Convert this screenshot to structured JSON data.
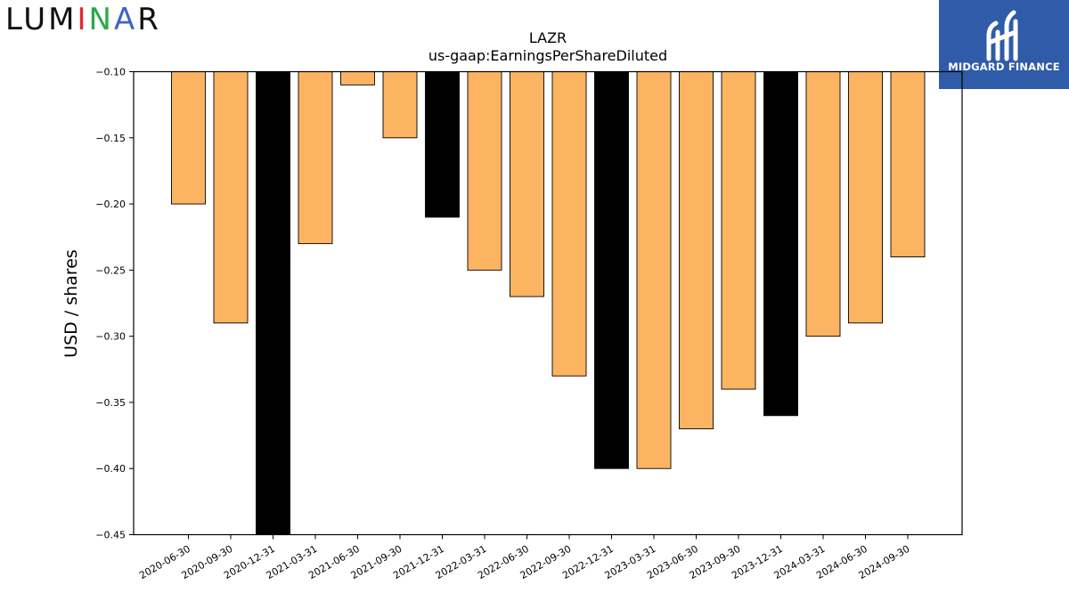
{
  "brand_left": {
    "parts": [
      "LUM",
      "I",
      "N",
      "A",
      "R"
    ],
    "colors": {
      "i_red": "#e3262f",
      "i_green": "#2aa84a",
      "i_blue": "#3d63c9"
    }
  },
  "brand_right": {
    "name": "MIDGARD FINANCE",
    "background": "#2f5ba8"
  },
  "chart_data": {
    "type": "bar",
    "title": "LAZR",
    "subtitle": "us-gaap:EarningsPerShareDiluted",
    "ylabel": "USD / shares",
    "xlabel": "",
    "ylim": [
      -0.45,
      -0.1
    ],
    "yticks": [
      "-0.10",
      "-0.15",
      "-0.20",
      "-0.25",
      "-0.30",
      "-0.35",
      "-0.40",
      "-0.45"
    ],
    "ytick_values": [
      -0.1,
      -0.15,
      -0.2,
      -0.25,
      -0.3,
      -0.35,
      -0.4,
      -0.45
    ],
    "grid": false,
    "colors": {
      "quarterly": "#fdb462",
      "annual": "#000000",
      "edge": "#000000"
    },
    "categories": [
      "2020-06-30",
      "2020-09-30",
      "2020-12-31",
      "2021-03-31",
      "2021-06-30",
      "2021-09-30",
      "2021-12-31",
      "2022-03-31",
      "2022-06-30",
      "2022-09-30",
      "2022-12-31",
      "2023-03-31",
      "2023-06-30",
      "2023-09-30",
      "2023-12-31",
      "2024-03-31",
      "2024-06-30",
      "2024-09-30"
    ],
    "values": [
      -0.2,
      -0.29,
      -0.45,
      -0.23,
      -0.11,
      -0.15,
      -0.21,
      -0.25,
      -0.27,
      -0.33,
      -0.4,
      -0.4,
      -0.37,
      -0.34,
      -0.36,
      -0.3,
      -0.29,
      -0.24
    ],
    "bar_kind": [
      "quarterly",
      "quarterly",
      "annual",
      "quarterly",
      "quarterly",
      "quarterly",
      "annual",
      "quarterly",
      "quarterly",
      "quarterly",
      "annual",
      "quarterly",
      "quarterly",
      "quarterly",
      "annual",
      "quarterly",
      "quarterly",
      "quarterly"
    ]
  }
}
